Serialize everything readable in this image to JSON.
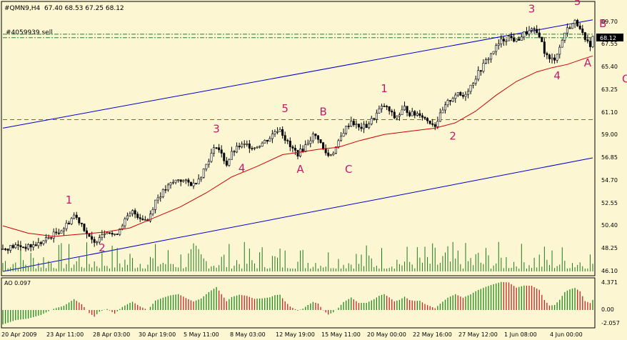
{
  "header": {
    "symbol": "#QMN9,H4",
    "ohlc": "67.40 68.53 67.25 68.12",
    "order_label": "#4059939 sell"
  },
  "indicator": {
    "label": "AO 0.097",
    "ticks": [
      "4.371",
      "0.00",
      "-2.057"
    ]
  },
  "price_axis": {
    "ticks": [
      "69.70",
      "67.55",
      "65.40",
      "63.25",
      "61.10",
      "59.00",
      "56.85",
      "54.70",
      "52.55",
      "50.40",
      "48.25",
      "46.10"
    ],
    "last_price": "68.12"
  },
  "time_axis": {
    "ticks": [
      "20 Apr 2009",
      "23 Apr 11:00",
      "28 Apr 03:00",
      "30 Apr 19:00",
      "5 May 11:00",
      "8 May 03:00",
      "12 May 19:00",
      "15 May 11:00",
      "20 May 00:00",
      "22 May 16:00",
      "27 May 12:00",
      "1 Jun 08:00",
      "4 Jun 00:00"
    ]
  },
  "colors": {
    "background": "#fdf6d3",
    "candle": "#000000",
    "ma": "#cc0000",
    "channel": "#0000cc",
    "wave_label": "#c8186c",
    "volume": "#1a7a1a",
    "ao_up": "#1a8a1a",
    "ao_down": "#cc2222",
    "dashed_green": "#2e7d32",
    "dashed_red": "#dd4400"
  },
  "chart_data": {
    "type": "candlestick",
    "ylim": [
      46.1,
      71.4
    ],
    "price_close_path": [
      [
        0,
        48.2
      ],
      [
        5,
        48.5
      ],
      [
        10,
        48.4
      ],
      [
        15,
        48.8
      ],
      [
        20,
        49.6
      ],
      [
        24,
        50.2
      ],
      [
        28,
        51.4
      ],
      [
        31,
        50.6
      ],
      [
        34,
        49.2
      ],
      [
        36,
        48.7
      ],
      [
        38,
        49.5
      ],
      [
        41,
        50.0
      ],
      [
        44,
        49.4
      ],
      [
        47,
        50.6
      ],
      [
        51,
        51.7
      ],
      [
        54,
        51.2
      ],
      [
        57,
        50.9
      ],
      [
        60,
        52.8
      ],
      [
        63,
        53.6
      ],
      [
        66,
        54.3
      ],
      [
        69,
        54.8
      ],
      [
        72,
        54.5
      ],
      [
        75,
        54.3
      ],
      [
        78,
        55.2
      ],
      [
        81,
        56.7
      ],
      [
        84,
        58.0
      ],
      [
        86,
        57.1
      ],
      [
        88,
        56.2
      ],
      [
        90,
        57.2
      ],
      [
        93,
        57.9
      ],
      [
        96,
        58.0
      ],
      [
        99,
        57.8
      ],
      [
        102,
        58.2
      ],
      [
        105,
        58.7
      ],
      [
        107,
        59.3
      ],
      [
        109,
        59.6
      ],
      [
        111,
        58.6
      ],
      [
        113,
        57.8
      ],
      [
        116,
        57.2
      ],
      [
        118,
        57.6
      ],
      [
        120,
        58.3
      ],
      [
        122,
        58.9
      ],
      [
        124,
        58.7
      ],
      [
        126,
        57.6
      ],
      [
        128,
        57.0
      ],
      [
        130,
        57.4
      ],
      [
        132,
        58.2
      ],
      [
        134,
        59.3
      ],
      [
        137,
        60.3
      ],
      [
        140,
        59.6
      ],
      [
        143,
        59.8
      ],
      [
        146,
        60.6
      ],
      [
        148,
        61.3
      ],
      [
        150,
        61.7
      ],
      [
        152,
        61.2
      ],
      [
        154,
        60.6
      ],
      [
        156,
        60.9
      ],
      [
        158,
        61.5
      ],
      [
        160,
        61.0
      ],
      [
        162,
        60.9
      ],
      [
        164,
        61.0
      ],
      [
        166,
        60.5
      ],
      [
        168,
        60.2
      ],
      [
        170,
        59.9
      ],
      [
        172,
        60.8
      ],
      [
        175,
        62.0
      ],
      [
        178,
        62.8
      ],
      [
        181,
        62.6
      ],
      [
        184,
        63.6
      ],
      [
        187,
        64.8
      ],
      [
        190,
        65.9
      ],
      [
        193,
        66.9
      ],
      [
        196,
        67.8
      ],
      [
        199,
        68.2
      ],
      [
        202,
        67.8
      ],
      [
        205,
        68.5
      ],
      [
        208,
        68.8
      ],
      [
        211,
        68.4
      ],
      [
        213,
        66.8
      ],
      [
        215,
        66.0
      ],
      [
        217,
        66.2
      ],
      [
        219,
        67.2
      ],
      [
        221,
        68.6
      ],
      [
        223,
        69.2
      ],
      [
        225,
        69.6
      ],
      [
        227,
        69.2
      ],
      [
        229,
        67.7
      ],
      [
        231,
        67.5
      ],
      [
        232,
        68.12
      ]
    ],
    "ma_path": [
      [
        0,
        50.4
      ],
      [
        10,
        49.7
      ],
      [
        20,
        49.4
      ],
      [
        30,
        49.6
      ],
      [
        40,
        49.8
      ],
      [
        50,
        50.2
      ],
      [
        60,
        51.2
      ],
      [
        70,
        52.2
      ],
      [
        80,
        53.5
      ],
      [
        90,
        55.0
      ],
      [
        100,
        56.0
      ],
      [
        110,
        57.1
      ],
      [
        116,
        57.3
      ],
      [
        124,
        57.6
      ],
      [
        132,
        57.8
      ],
      [
        140,
        58.4
      ],
      [
        150,
        59.0
      ],
      [
        160,
        59.3
      ],
      [
        170,
        59.6
      ],
      [
        178,
        60.1
      ],
      [
        186,
        61.2
      ],
      [
        194,
        62.7
      ],
      [
        202,
        64.0
      ],
      [
        210,
        64.9
      ],
      [
        216,
        65.3
      ],
      [
        222,
        65.6
      ],
      [
        228,
        66.1
      ],
      [
        232,
        66.4
      ]
    ],
    "channel_upper": [
      [
        0,
        59.6
      ],
      [
        232,
        69.8
      ]
    ],
    "channel_lower": [
      [
        0,
        46.1
      ],
      [
        232,
        56.8
      ]
    ],
    "horizontal_lines": [
      {
        "price": 68.45,
        "style": "dash-dot",
        "color": "green"
      },
      {
        "price": 68.12,
        "style": "dash-dot",
        "color": "green"
      },
      {
        "price": 60.4,
        "style": "dashed",
        "color": "red"
      }
    ],
    "wave_labels": [
      {
        "text": "1",
        "bar": 26,
        "price": 52.5
      },
      {
        "text": "2",
        "bar": 39,
        "price": 48.0
      },
      {
        "text": "3",
        "bar": 84,
        "price": 59.2
      },
      {
        "text": "4",
        "bar": 94,
        "price": 55.5
      },
      {
        "text": "5",
        "bar": 111,
        "price": 61.1
      },
      {
        "text": "A",
        "bar": 117,
        "price": 55.4
      },
      {
        "text": "B",
        "bar": 126,
        "price": 60.8
      },
      {
        "text": "C",
        "bar": 136,
        "price": 55.4
      },
      {
        "text": "1",
        "bar": 150,
        "price": 63.0
      },
      {
        "text": "2",
        "bar": 177,
        "price": 58.5
      },
      {
        "text": "3",
        "bar": 208,
        "price": 70.5
      },
      {
        "text": "4",
        "bar": 218,
        "price": 64.2
      },
      {
        "text": "5",
        "bar": 226,
        "price": 71.2
      },
      {
        "text": "A",
        "bar": 230,
        "price": 65.4
      },
      {
        "text": "B",
        "bar": 236,
        "price": 69.1
      },
      {
        "text": "C",
        "bar": 245,
        "price": 63.9
      }
    ]
  }
}
